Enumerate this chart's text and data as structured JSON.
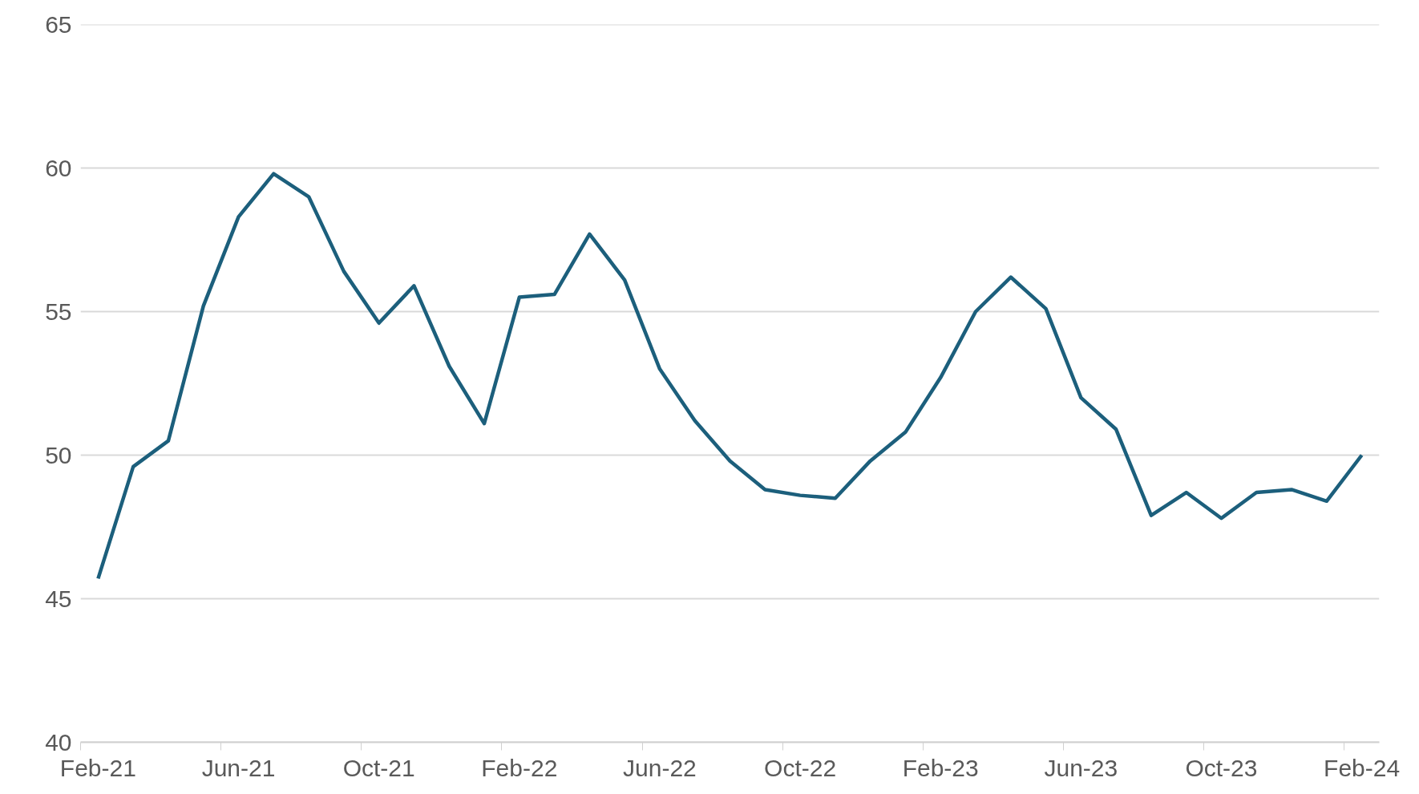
{
  "chart_data": {
    "type": "line",
    "categories": [
      "Feb-21",
      null,
      null,
      null,
      "Jun-21",
      null,
      null,
      null,
      "Oct-21",
      null,
      null,
      null,
      "Feb-22",
      null,
      null,
      null,
      "Jun-22",
      null,
      null,
      null,
      "Oct-22",
      null,
      null,
      null,
      "Feb-23",
      null,
      null,
      null,
      "Jun-23",
      null,
      null,
      null,
      "Oct-23",
      null,
      null,
      null,
      "Feb-24"
    ],
    "series": [
      {
        "color": "#1c5f7c",
        "values": [
          45.7,
          49.6,
          50.5,
          55.2,
          58.3,
          59.8,
          59.0,
          56.4,
          54.6,
          55.9,
          53.1,
          51.1,
          55.5,
          55.6,
          57.7,
          56.1,
          53.0,
          51.2,
          49.8,
          48.8,
          48.6,
          48.5,
          49.8,
          50.8,
          52.7,
          55.0,
          56.2,
          55.1,
          52.0,
          50.9,
          47.9,
          48.7,
          47.8,
          48.7,
          48.8,
          48.4,
          50.0
        ]
      }
    ],
    "ylim": [
      40,
      65
    ],
    "yticks": [
      40,
      45,
      50,
      55,
      60,
      65
    ],
    "grid": "y",
    "marker": "none",
    "line_style": "solid"
  }
}
